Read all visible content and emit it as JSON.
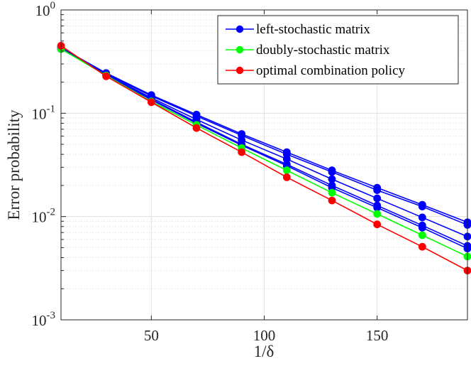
{
  "chart_data": {
    "type": "line",
    "yscale": "log",
    "title": "",
    "xlabel": "1/δ",
    "ylabel": "Error probability",
    "xlim": [
      10,
      190
    ],
    "ylim": [
      0.001,
      1
    ],
    "grid": true,
    "legend_position": "top-right",
    "x_ticks": [
      50,
      100,
      150
    ],
    "y_ticks": [
      {
        "value": 0.001,
        "base": "10",
        "exp": "-3"
      },
      {
        "value": 0.01,
        "base": "10",
        "exp": "-2"
      },
      {
        "value": 0.1,
        "base": "10",
        "exp": "-1"
      },
      {
        "value": 1,
        "base": "10",
        "exp": "0"
      }
    ],
    "x": [
      10,
      30,
      50,
      70,
      90,
      110,
      130,
      150,
      170,
      190
    ],
    "legend": [
      {
        "label": "left-stochastic matrix",
        "color": "#0000ff"
      },
      {
        "label": "doubly-stochastic matrix",
        "color": "#00ff00"
      },
      {
        "label": "optimal combination policy",
        "color": "#ff0000"
      }
    ],
    "series": [
      {
        "name": "left-stochastic matrix",
        "color": "#0000ff",
        "values": [
          0.43,
          0.245,
          0.15,
          0.097,
          0.063,
          0.042,
          0.028,
          0.019,
          0.013,
          0.0088
        ]
      },
      {
        "name": "left-stochastic matrix",
        "color": "#0000ff",
        "values": [
          0.43,
          0.242,
          0.147,
          0.094,
          0.061,
          0.04,
          0.027,
          0.018,
          0.0125,
          0.0083
        ]
      },
      {
        "name": "left-stochastic matrix",
        "color": "#0000ff",
        "values": [
          0.42,
          0.238,
          0.141,
          0.087,
          0.055,
          0.036,
          0.023,
          0.015,
          0.0098,
          0.0064
        ]
      },
      {
        "name": "left-stochastic matrix",
        "color": "#0000ff",
        "values": [
          0.42,
          0.236,
          0.137,
          0.082,
          0.05,
          0.032,
          0.02,
          0.0128,
          0.0082,
          0.0052
        ]
      },
      {
        "name": "left-stochastic matrix",
        "color": "#0000ff",
        "values": [
          0.42,
          0.235,
          0.135,
          0.08,
          0.049,
          0.031,
          0.019,
          0.0122,
          0.0078,
          0.0049
        ]
      },
      {
        "name": "doubly-stochastic matrix",
        "color": "#00ff00",
        "values": [
          0.42,
          0.232,
          0.13,
          0.077,
          0.046,
          0.028,
          0.017,
          0.0106,
          0.0066,
          0.0041
        ]
      },
      {
        "name": "optimal combination policy",
        "color": "#ff0000",
        "values": [
          0.45,
          0.228,
          0.128,
          0.072,
          0.042,
          0.024,
          0.0143,
          0.0084,
          0.0051,
          0.003
        ]
      }
    ]
  }
}
